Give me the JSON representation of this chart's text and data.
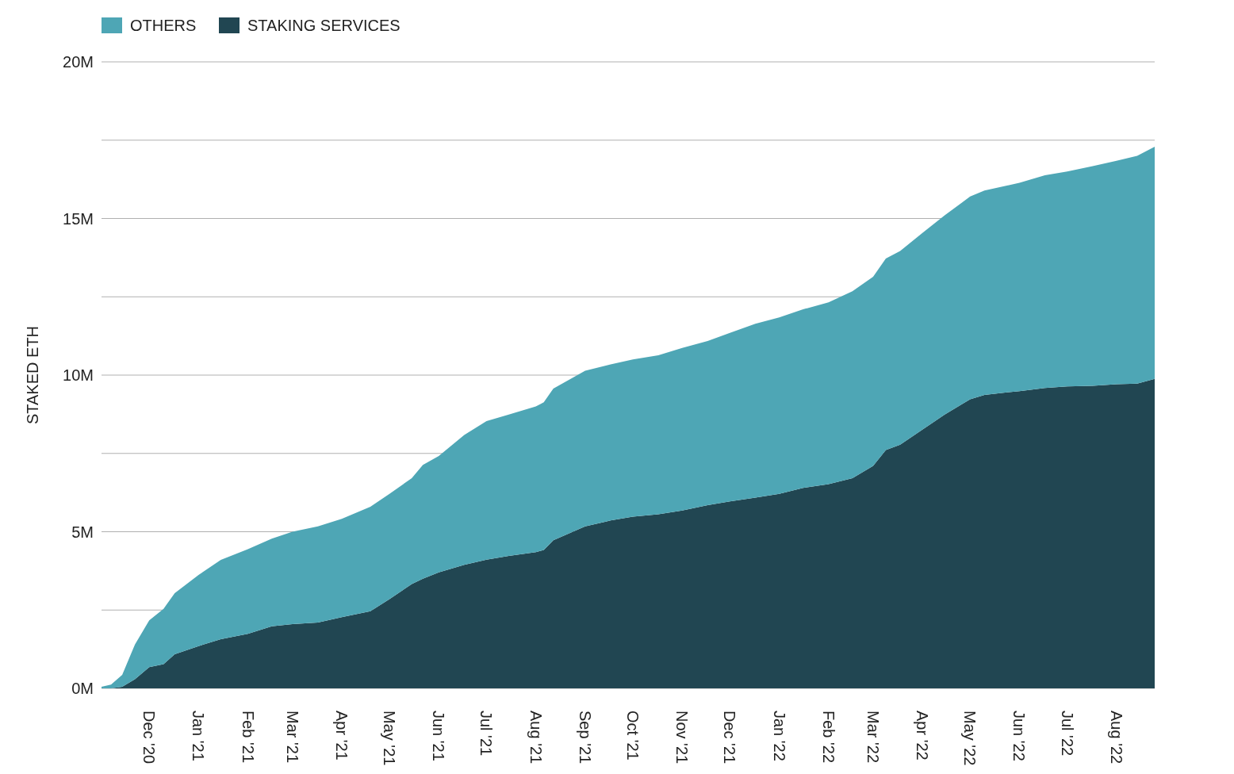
{
  "chart_data": {
    "type": "area",
    "stacked": true,
    "ylabel": "STAKED ETH",
    "legend": "top left",
    "grid": "y",
    "x": [
      "2020-11-01",
      "2020-11-07",
      "2020-11-14",
      "2020-11-22",
      "2020-12-01",
      "2020-12-10",
      "2020-12-17",
      "2021-01-01",
      "2021-01-15",
      "2021-02-01",
      "2021-02-16",
      "2021-03-01",
      "2021-03-17",
      "2021-04-01",
      "2021-04-19",
      "2021-05-01",
      "2021-05-15",
      "2021-05-22",
      "2021-06-01",
      "2021-06-17",
      "2021-07-01",
      "2021-07-15",
      "2021-08-01",
      "2021-08-06",
      "2021-08-12",
      "2021-09-01",
      "2021-09-17",
      "2021-10-01",
      "2021-10-17",
      "2021-11-01",
      "2021-11-17",
      "2021-12-01",
      "2021-12-17",
      "2022-01-01",
      "2022-01-16",
      "2022-02-01",
      "2022-02-16",
      "2022-03-01",
      "2022-03-09",
      "2022-03-18",
      "2022-04-01",
      "2022-04-15",
      "2022-05-01",
      "2022-05-10",
      "2022-06-01",
      "2022-06-17",
      "2022-07-01",
      "2022-07-17",
      "2022-08-01",
      "2022-08-14",
      "2022-08-25"
    ],
    "series": [
      {
        "name": "STAKING SERVICES",
        "color": "#214652",
        "values": [
          0,
          0,
          0.05,
          0.29,
          0.68,
          0.77,
          1.09,
          1.35,
          1.57,
          1.74,
          1.98,
          2.05,
          2.1,
          2.27,
          2.46,
          2.85,
          3.33,
          3.5,
          3.7,
          3.94,
          4.11,
          4.23,
          4.35,
          4.42,
          4.73,
          5.17,
          5.36,
          5.48,
          5.56,
          5.68,
          5.85,
          5.97,
          6.09,
          6.21,
          6.4,
          6.52,
          6.71,
          7.1,
          7.61,
          7.78,
          8.26,
          8.74,
          9.23,
          9.37,
          9.49,
          9.59,
          9.64,
          9.66,
          9.71,
          9.73,
          9.88
        ]
      },
      {
        "name": "OTHERS",
        "color": "#4ea6b5",
        "values": [
          0.05,
          0.12,
          0.38,
          1.11,
          1.49,
          1.77,
          1.95,
          2.27,
          2.53,
          2.7,
          2.8,
          2.95,
          3.07,
          3.14,
          3.34,
          3.36,
          3.38,
          3.63,
          3.72,
          4.15,
          4.42,
          4.51,
          4.65,
          4.71,
          4.84,
          4.97,
          4.98,
          5.02,
          5.07,
          5.19,
          5.24,
          5.38,
          5.55,
          5.63,
          5.7,
          5.8,
          5.97,
          6.04,
          6.11,
          6.18,
          6.28,
          6.36,
          6.47,
          6.52,
          6.65,
          6.79,
          6.86,
          7.01,
          7.13,
          7.27,
          7.41
        ]
      }
    ],
    "xlim": [
      "2020-11-01",
      "2022-08-25"
    ],
    "xticks": [
      {
        "value": "2020-12-01",
        "label": "Dec '20"
      },
      {
        "value": "2021-01-01",
        "label": "Jan '21"
      },
      {
        "value": "2021-02-01",
        "label": "Feb '21"
      },
      {
        "value": "2021-03-01",
        "label": "Mar '21"
      },
      {
        "value": "2021-04-01",
        "label": "Apr '21"
      },
      {
        "value": "2021-05-01",
        "label": "May '21"
      },
      {
        "value": "2021-06-01",
        "label": "Jun '21"
      },
      {
        "value": "2021-07-01",
        "label": "Jul '21"
      },
      {
        "value": "2021-08-01",
        "label": "Aug '21"
      },
      {
        "value": "2021-09-01",
        "label": "Sep '21"
      },
      {
        "value": "2021-10-01",
        "label": "Oct '21"
      },
      {
        "value": "2021-11-01",
        "label": "Nov '21"
      },
      {
        "value": "2021-12-01",
        "label": "Dec '21"
      },
      {
        "value": "2022-01-01",
        "label": "Jan '22"
      },
      {
        "value": "2022-02-01",
        "label": "Feb '22"
      },
      {
        "value": "2022-03-01",
        "label": "Mar '22"
      },
      {
        "value": "2022-04-01",
        "label": "Apr '22"
      },
      {
        "value": "2022-05-01",
        "label": "May '22"
      },
      {
        "value": "2022-06-01",
        "label": "Jun '22"
      },
      {
        "value": "2022-07-01",
        "label": "Jul '22"
      },
      {
        "value": "2022-08-01",
        "label": "Aug '22"
      }
    ],
    "ylim": [
      0,
      20
    ],
    "yticks": [
      {
        "value": 0,
        "label": "0M"
      },
      {
        "value": 2.5,
        "label": null
      },
      {
        "value": 5,
        "label": "5M"
      },
      {
        "value": 7.5,
        "label": null
      },
      {
        "value": 10,
        "label": "10M"
      },
      {
        "value": 12.5,
        "label": null
      },
      {
        "value": 15,
        "label": "15M"
      },
      {
        "value": 17.5,
        "label": null
      },
      {
        "value": 20,
        "label": "20M"
      }
    ]
  }
}
